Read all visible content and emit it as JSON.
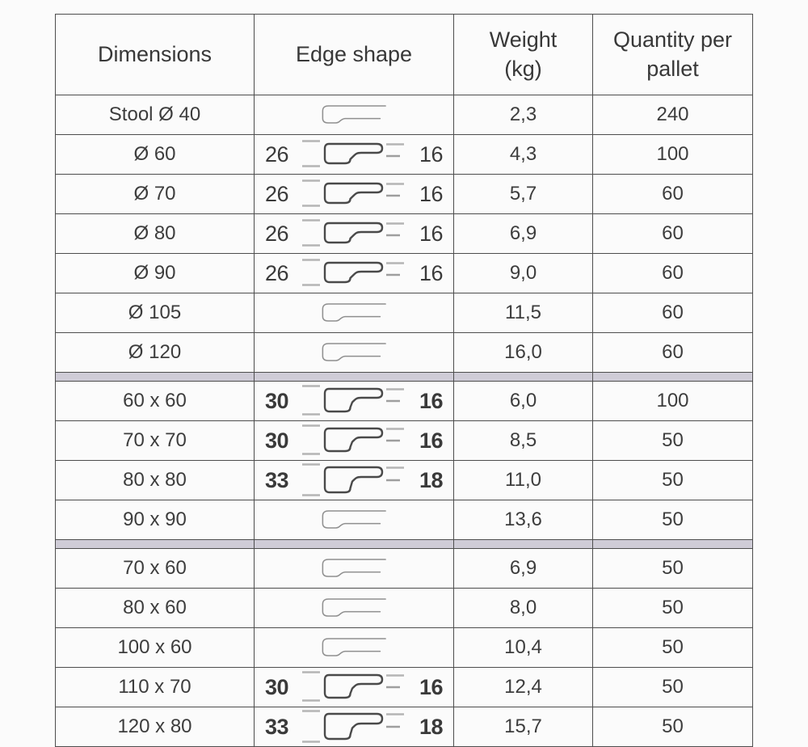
{
  "colors": {
    "border": "#4d4d4d",
    "divider_band": "#cfccd7",
    "text": "#3d3d3d",
    "profile_stroke": "#4a4a4a",
    "plain_profile_stroke": "#8f8f8f",
    "tick": "#b5b5b5",
    "page_background": "#fbfbfb"
  },
  "table": {
    "headers": [
      {
        "name": "header-dimensions",
        "lines": [
          "Dimensions"
        ]
      },
      {
        "name": "header-edge-shape",
        "lines": [
          "Edge shape"
        ]
      },
      {
        "name": "header-weight",
        "lines": [
          "Weight",
          "(kg)"
        ]
      },
      {
        "name": "header-quantity-per-pallet",
        "lines": [
          "Quantity per",
          "pallet"
        ]
      }
    ],
    "rows": [
      {
        "dimensions": "Stool Ø 40",
        "edge": {
          "type": "plain"
        },
        "weight": "2,3",
        "quantity": "240"
      },
      {
        "dimensions": "Ø 60",
        "edge": {
          "type": "dimensioned",
          "left": "26",
          "right": "16",
          "bold": false
        },
        "weight": "4,3",
        "quantity": "100"
      },
      {
        "dimensions": "Ø 70",
        "edge": {
          "type": "dimensioned",
          "left": "26",
          "right": "16",
          "bold": false
        },
        "weight": "5,7",
        "quantity": "60"
      },
      {
        "dimensions": "Ø 80",
        "edge": {
          "type": "dimensioned",
          "left": "26",
          "right": "16",
          "bold": false
        },
        "weight": "6,9",
        "quantity": "60"
      },
      {
        "dimensions": "Ø 90",
        "edge": {
          "type": "dimensioned",
          "left": "26",
          "right": "16",
          "bold": false
        },
        "weight": "9,0",
        "quantity": "60"
      },
      {
        "dimensions": "Ø 105",
        "edge": {
          "type": "plain"
        },
        "weight": "11,5",
        "quantity": "60"
      },
      {
        "dimensions": "Ø 120",
        "edge": {
          "type": "plain"
        },
        "weight": "16,0",
        "quantity": "60"
      },
      {
        "divider": true
      },
      {
        "dimensions": "60 x 60",
        "edge": {
          "type": "dimensioned",
          "left": "30",
          "right": "16",
          "bold": true
        },
        "weight": "6,0",
        "quantity": "100"
      },
      {
        "dimensions": "70 x 70",
        "edge": {
          "type": "dimensioned",
          "left": "30",
          "right": "16",
          "bold": true
        },
        "weight": "8,5",
        "quantity": "50"
      },
      {
        "dimensions": "80 x 80",
        "edge": {
          "type": "dimensioned",
          "left": "33",
          "right": "18",
          "bold": true
        },
        "weight": "11,0",
        "quantity": "50"
      },
      {
        "dimensions": "90 x 90",
        "edge": {
          "type": "plain"
        },
        "weight": "13,6",
        "quantity": "50"
      },
      {
        "divider": true
      },
      {
        "dimensions": "70 x 60",
        "edge": {
          "type": "plain"
        },
        "weight": "6,9",
        "quantity": "50"
      },
      {
        "dimensions": "80 x 60",
        "edge": {
          "type": "plain"
        },
        "weight": "8,0",
        "quantity": "50"
      },
      {
        "dimensions": "100 x 60",
        "edge": {
          "type": "plain"
        },
        "weight": "10,4",
        "quantity": "50"
      },
      {
        "dimensions": "110 x 70",
        "edge": {
          "type": "dimensioned",
          "left": "30",
          "right": "16",
          "bold": true
        },
        "weight": "12,4",
        "quantity": "50"
      },
      {
        "dimensions": "120 x 80",
        "edge": {
          "type": "dimensioned",
          "left": "33",
          "right": "18",
          "bold": true
        },
        "weight": "15,7",
        "quantity": "50"
      }
    ]
  }
}
